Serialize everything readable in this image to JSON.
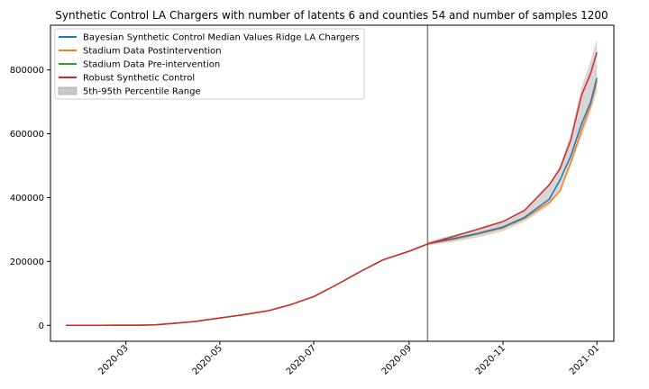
{
  "chart_data": {
    "type": "line",
    "title": "Synthetic Control LA Chargers with number of latents 6 and counties 54 and number of samples 1200",
    "xlabel": "",
    "ylabel": "",
    "x_range": [
      "2020-01-12",
      "2021-01-12"
    ],
    "ylim": [
      -50000,
      940000
    ],
    "x_ticks": [
      "2020-03",
      "2020-05",
      "2020-07",
      "2020-09",
      "2020-11",
      "2021-01"
    ],
    "y_ticks": [
      0,
      200000,
      400000,
      600000,
      800000
    ],
    "y_tick_labels": [
      "0",
      "200000",
      "400000",
      "600000",
      "800000"
    ],
    "intervention_date": "2020-09-13",
    "legend_position": "upper-left",
    "grid": false,
    "colors": {
      "bayesian": "#1f77b4",
      "post": "#ff7f0e",
      "pre": "#2ca02c",
      "robust": "#d62728",
      "band": "#c8c8c8",
      "vline": "#808080"
    },
    "legend": [
      {
        "label": "Bayesian Synthetic Control Median Values Ridge LA Chargers",
        "color_key": "bayesian",
        "kind": "line"
      },
      {
        "label": "Stadium Data Postintervention",
        "color_key": "post",
        "kind": "line"
      },
      {
        "label": "Stadium Data Pre-intervention",
        "color_key": "pre",
        "kind": "line"
      },
      {
        "label": "Robust Synthetic Control",
        "color_key": "robust",
        "kind": "line"
      },
      {
        "label": "5th-95th Percentile Range",
        "color_key": "band",
        "kind": "patch"
      }
    ],
    "series": [
      {
        "name": "Stadium Data Pre-intervention",
        "color_key": "pre",
        "points": [
          [
            "2020-01-22",
            0
          ],
          [
            "2020-02-15",
            200
          ],
          [
            "2020-03-10",
            500
          ],
          [
            "2020-03-20",
            1200
          ],
          [
            "2020-04-01",
            6000
          ],
          [
            "2020-04-15",
            12000
          ],
          [
            "2020-05-01",
            23000
          ],
          [
            "2020-05-15",
            32000
          ],
          [
            "2020-06-01",
            45000
          ],
          [
            "2020-06-15",
            63000
          ],
          [
            "2020-07-01",
            90000
          ],
          [
            "2020-07-15",
            125000
          ],
          [
            "2020-08-01",
            170000
          ],
          [
            "2020-08-15",
            205000
          ],
          [
            "2020-09-01",
            232000
          ],
          [
            "2020-09-13",
            255000
          ]
        ]
      },
      {
        "name": "Stadium Data Postintervention",
        "color_key": "post",
        "points": [
          [
            "2020-09-13",
            255000
          ],
          [
            "2020-10-01",
            270000
          ],
          [
            "2020-10-15",
            285000
          ],
          [
            "2020-11-01",
            305000
          ],
          [
            "2020-11-15",
            335000
          ],
          [
            "2020-12-01",
            385000
          ],
          [
            "2020-12-08",
            420000
          ],
          [
            "2020-12-15",
            510000
          ],
          [
            "2020-12-22",
            610000
          ],
          [
            "2020-12-28",
            690000
          ],
          [
            "2021-01-01",
            765000
          ]
        ]
      },
      {
        "name": "Bayesian Synthetic Control Median Values Ridge LA Chargers",
        "color_key": "bayesian",
        "points": [
          [
            "2020-09-13",
            256000
          ],
          [
            "2020-10-01",
            273000
          ],
          [
            "2020-10-15",
            287000
          ],
          [
            "2020-11-01",
            308000
          ],
          [
            "2020-11-15",
            338000
          ],
          [
            "2020-12-01",
            395000
          ],
          [
            "2020-12-08",
            455000
          ],
          [
            "2020-12-15",
            530000
          ],
          [
            "2020-12-22",
            630000
          ],
          [
            "2020-12-28",
            700000
          ],
          [
            "2021-01-01",
            775000
          ]
        ]
      },
      {
        "name": "Robust Synthetic Control",
        "color_key": "robust",
        "points": [
          [
            "2020-01-22",
            0
          ],
          [
            "2020-02-15",
            200
          ],
          [
            "2020-03-10",
            500
          ],
          [
            "2020-03-20",
            1200
          ],
          [
            "2020-04-01",
            6000
          ],
          [
            "2020-04-15",
            12000
          ],
          [
            "2020-05-01",
            23000
          ],
          [
            "2020-05-15",
            32000
          ],
          [
            "2020-06-01",
            45000
          ],
          [
            "2020-06-15",
            63000
          ],
          [
            "2020-07-01",
            90000
          ],
          [
            "2020-07-15",
            125000
          ],
          [
            "2020-08-01",
            170000
          ],
          [
            "2020-08-15",
            205000
          ],
          [
            "2020-09-01",
            232000
          ],
          [
            "2020-09-13",
            255000
          ],
          [
            "2020-10-01",
            280000
          ],
          [
            "2020-10-15",
            300000
          ],
          [
            "2020-11-01",
            325000
          ],
          [
            "2020-11-15",
            360000
          ],
          [
            "2020-12-01",
            440000
          ],
          [
            "2020-12-08",
            490000
          ],
          [
            "2020-12-15",
            580000
          ],
          [
            "2020-12-22",
            720000
          ],
          [
            "2020-12-28",
            790000
          ],
          [
            "2021-01-01",
            855000
          ]
        ]
      }
    ],
    "band": {
      "name": "5th-95th Percentile Range",
      "color_key": "band",
      "points": [
        [
          "2020-09-13",
          250000,
          262000
        ],
        [
          "2020-10-01",
          262000,
          285000
        ],
        [
          "2020-10-15",
          275000,
          300000
        ],
        [
          "2020-11-01",
          295000,
          325000
        ],
        [
          "2020-11-15",
          325000,
          362000
        ],
        [
          "2020-12-01",
          375000,
          440000
        ],
        [
          "2020-12-08",
          420000,
          500000
        ],
        [
          "2020-12-15",
          500000,
          600000
        ],
        [
          "2020-12-22",
          590000,
          745000
        ],
        [
          "2020-12-28",
          670000,
          830000
        ],
        [
          "2021-01-01",
          730000,
          895000
        ]
      ]
    }
  }
}
